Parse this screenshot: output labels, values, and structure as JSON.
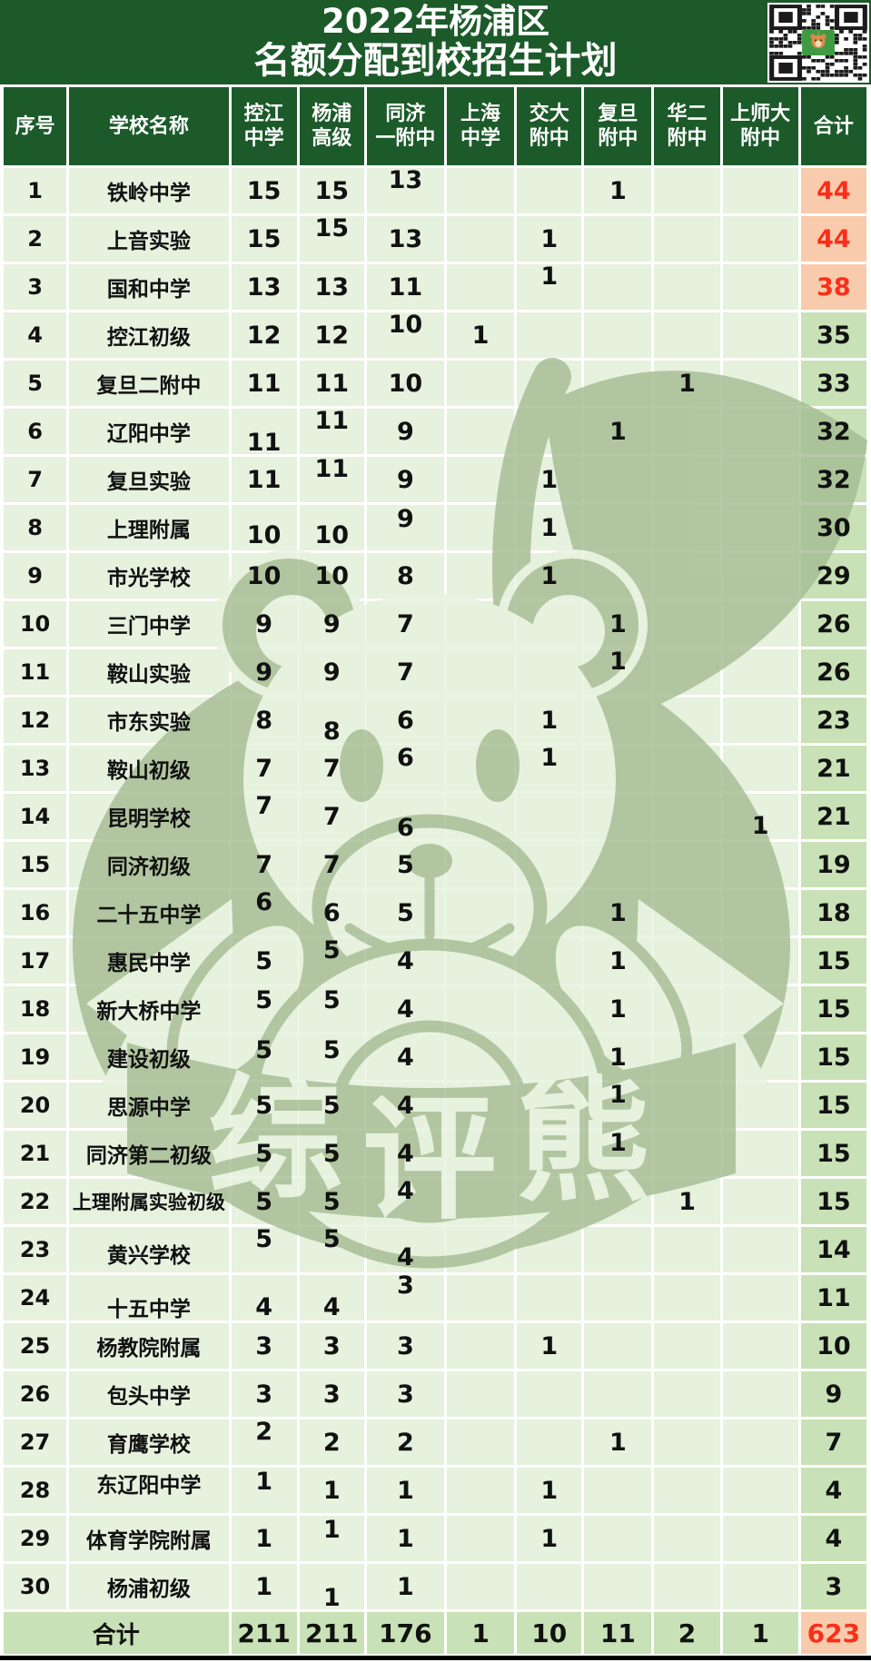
{
  "title": {
    "line1": "2022年杨浦区",
    "line2": "名额分配到校招生计划"
  },
  "qr": {
    "center_icon": "bear-mascot-icon"
  },
  "watermark": {
    "text": "综评熊"
  },
  "colors": {
    "banner_green": "#1c5a2a",
    "cell_light_green": "#e6f1de",
    "total_column_green": "#c9e1b6",
    "highlight_peach": "#f8cbad",
    "highlight_red": "#fb2e19",
    "watermark_sage": "#a4bc91",
    "title_text": "#ffffff"
  },
  "table": {
    "headers": {
      "index": "序号",
      "school": "学校名称",
      "columns": [
        {
          "line1": "控江",
          "line2": "中学"
        },
        {
          "line1": "杨浦",
          "line2": "高级"
        },
        {
          "line1": "同济",
          "line2": "一附中"
        },
        {
          "line1": "上海",
          "line2": "中学"
        },
        {
          "line1": "交大",
          "line2": "附中"
        },
        {
          "line1": "复旦",
          "line2": "附中"
        },
        {
          "line1": "华二",
          "line2": "附中"
        },
        {
          "line1": "上师大",
          "line2": "附中"
        }
      ],
      "total": "合计"
    },
    "rows": [
      {
        "no": "1",
        "school": "铁岭中学",
        "values": [
          "15",
          "15",
          "13",
          "",
          "",
          "1",
          "",
          ""
        ],
        "total": "44",
        "highlight": true
      },
      {
        "no": "2",
        "school": "上音实验",
        "values": [
          "15",
          "15",
          "13",
          "",
          "1",
          "",
          "",
          ""
        ],
        "total": "44",
        "highlight": true
      },
      {
        "no": "3",
        "school": "国和中学",
        "values": [
          "13",
          "13",
          "11",
          "",
          "1",
          "",
          "",
          ""
        ],
        "total": "38",
        "highlight": true
      },
      {
        "no": "4",
        "school": "控江初级",
        "values": [
          "12",
          "12",
          "10",
          "1",
          "",
          "",
          "",
          ""
        ],
        "total": "35",
        "highlight": false
      },
      {
        "no": "5",
        "school": "复旦二附中",
        "values": [
          "11",
          "11",
          "10",
          "",
          "",
          "",
          "1",
          ""
        ],
        "total": "33",
        "highlight": false
      },
      {
        "no": "6",
        "school": "辽阳中学",
        "values": [
          "11",
          "11",
          "9",
          "",
          "",
          "1",
          "",
          ""
        ],
        "total": "32",
        "highlight": false
      },
      {
        "no": "7",
        "school": "复旦实验",
        "values": [
          "11",
          "11",
          "9",
          "",
          "1",
          "",
          "",
          ""
        ],
        "total": "32",
        "highlight": false
      },
      {
        "no": "8",
        "school": "上理附属",
        "values": [
          "10",
          "10",
          "9",
          "",
          "1",
          "",
          "",
          ""
        ],
        "total": "30",
        "highlight": false
      },
      {
        "no": "9",
        "school": "市光学校",
        "values": [
          "10",
          "10",
          "8",
          "",
          "1",
          "",
          "",
          ""
        ],
        "total": "29",
        "highlight": false
      },
      {
        "no": "10",
        "school": "三门中学",
        "values": [
          "9",
          "9",
          "7",
          "",
          "",
          "1",
          "",
          ""
        ],
        "total": "26",
        "highlight": false
      },
      {
        "no": "11",
        "school": "鞍山实验",
        "values": [
          "9",
          "9",
          "7",
          "",
          "",
          "1",
          "",
          ""
        ],
        "total": "26",
        "highlight": false
      },
      {
        "no": "12",
        "school": "市东实验",
        "values": [
          "8",
          "8",
          "6",
          "",
          "1",
          "",
          "",
          ""
        ],
        "total": "23",
        "highlight": false
      },
      {
        "no": "13",
        "school": "鞍山初级",
        "values": [
          "7",
          "7",
          "6",
          "",
          "1",
          "",
          "",
          ""
        ],
        "total": "21",
        "highlight": false
      },
      {
        "no": "14",
        "school": "昆明学校",
        "values": [
          "7",
          "7",
          "6",
          "",
          "",
          "",
          "",
          "1"
        ],
        "total": "21",
        "highlight": false
      },
      {
        "no": "15",
        "school": "同济初级",
        "values": [
          "7",
          "7",
          "5",
          "",
          "",
          "",
          "",
          ""
        ],
        "total": "19",
        "highlight": false
      },
      {
        "no": "16",
        "school": "二十五中学",
        "values": [
          "6",
          "6",
          "5",
          "",
          "",
          "1",
          "",
          ""
        ],
        "total": "18",
        "highlight": false
      },
      {
        "no": "17",
        "school": "惠民中学",
        "values": [
          "5",
          "5",
          "4",
          "",
          "",
          "1",
          "",
          ""
        ],
        "total": "15",
        "highlight": false
      },
      {
        "no": "18",
        "school": "新大桥中学",
        "values": [
          "5",
          "5",
          "4",
          "",
          "",
          "1",
          "",
          ""
        ],
        "total": "15",
        "highlight": false
      },
      {
        "no": "19",
        "school": "建设初级",
        "values": [
          "5",
          "5",
          "4",
          "",
          "",
          "1",
          "",
          ""
        ],
        "total": "15",
        "highlight": false
      },
      {
        "no": "20",
        "school": "思源中学",
        "values": [
          "5",
          "5",
          "4",
          "",
          "",
          "1",
          "",
          ""
        ],
        "total": "15",
        "highlight": false
      },
      {
        "no": "21",
        "school": "同济第二初级",
        "values": [
          "5",
          "5",
          "4",
          "",
          "",
          "1",
          "",
          ""
        ],
        "total": "15",
        "highlight": false
      },
      {
        "no": "22",
        "school": "上理附属实验初级",
        "values": [
          "5",
          "5",
          "4",
          "",
          "",
          "",
          "1",
          ""
        ],
        "total": "15",
        "highlight": false
      },
      {
        "no": "23",
        "school": "黄兴学校",
        "values": [
          "5",
          "5",
          "4",
          "",
          "",
          "",
          "",
          ""
        ],
        "total": "14",
        "highlight": false
      },
      {
        "no": "24",
        "school": "十五中学",
        "values": [
          "4",
          "4",
          "3",
          "",
          "",
          "",
          "",
          ""
        ],
        "total": "11",
        "highlight": false
      },
      {
        "no": "25",
        "school": "杨教院附属",
        "values": [
          "3",
          "3",
          "3",
          "",
          "1",
          "",
          "",
          ""
        ],
        "total": "10",
        "highlight": false
      },
      {
        "no": "26",
        "school": "包头中学",
        "values": [
          "3",
          "3",
          "3",
          "",
          "",
          "",
          "",
          ""
        ],
        "total": "9",
        "highlight": false
      },
      {
        "no": "27",
        "school": "育鹰学校",
        "values": [
          "2",
          "2",
          "2",
          "",
          "",
          "1",
          "",
          ""
        ],
        "total": "7",
        "highlight": false
      },
      {
        "no": "28",
        "school": "东辽阳中学",
        "values": [
          "1",
          "1",
          "1",
          "",
          "1",
          "",
          "",
          ""
        ],
        "total": "4",
        "highlight": false
      },
      {
        "no": "29",
        "school": "体育学院附属",
        "values": [
          "1",
          "1",
          "1",
          "",
          "1",
          "",
          "",
          ""
        ],
        "total": "4",
        "highlight": false
      },
      {
        "no": "30",
        "school": "杨浦初级",
        "values": [
          "1",
          "1",
          "1",
          "",
          "",
          "",
          "",
          ""
        ],
        "total": "3",
        "highlight": false
      }
    ],
    "footer": {
      "label": "合计",
      "values": [
        "211",
        "211",
        "176",
        "1",
        "10",
        "11",
        "2",
        "1"
      ],
      "total": "623"
    }
  }
}
